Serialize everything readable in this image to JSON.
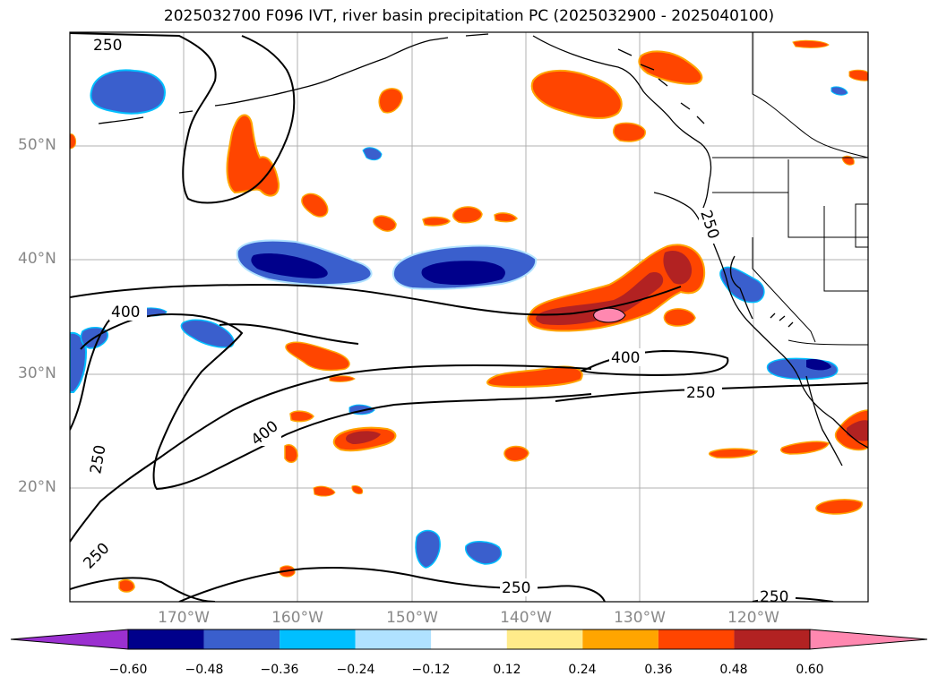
{
  "title": "2025032700 F096 IVT, river basin precipitation PC (2025032900 - 2025040100)",
  "lat_labels": [
    "50°N",
    "40°N",
    "30°N",
    "20°N"
  ],
  "lon_labels": [
    "170°W",
    "160°W",
    "150°W",
    "140°W",
    "130°W",
    "120°W"
  ],
  "contour_labels": [
    "250",
    "400",
    "250",
    "400",
    "250",
    "250",
    "400",
    "250",
    "250",
    "250"
  ],
  "colorbar": {
    "ticks": [
      "−0.60",
      "−0.48",
      "−0.36",
      "−0.24",
      "−0.12",
      "0.12",
      "0.24",
      "0.36",
      "0.48",
      "0.60"
    ],
    "colors": [
      "#9b30d0",
      "#00008b",
      "#3a5fcd",
      "#00bfff",
      "#b0e2ff",
      "#ffffff",
      "#ffeb8a",
      "#ffa500",
      "#ff4500",
      "#b22222",
      "#ff88b0"
    ]
  },
  "chart_data": {
    "type": "heatmap",
    "title": "2025032700 F096 IVT, river basin precipitation PC (2025032900 - 2025040100)",
    "xlabel": "",
    "ylabel": "",
    "x_ticks": [
      "170°W",
      "160°W",
      "150°W",
      "140°W",
      "130°W",
      "120°W"
    ],
    "y_ticks": [
      "20°N",
      "30°N",
      "40°N",
      "50°N"
    ],
    "xlim": [
      -180,
      -110
    ],
    "ylim": [
      10,
      60
    ],
    "colorbar_levels": [
      -0.6,
      -0.48,
      -0.36,
      -0.24,
      -0.12,
      0.12,
      0.24,
      0.36,
      0.48,
      0.6
    ],
    "ivt_contour_levels": [
      250,
      400
    ],
    "grid": true
  }
}
